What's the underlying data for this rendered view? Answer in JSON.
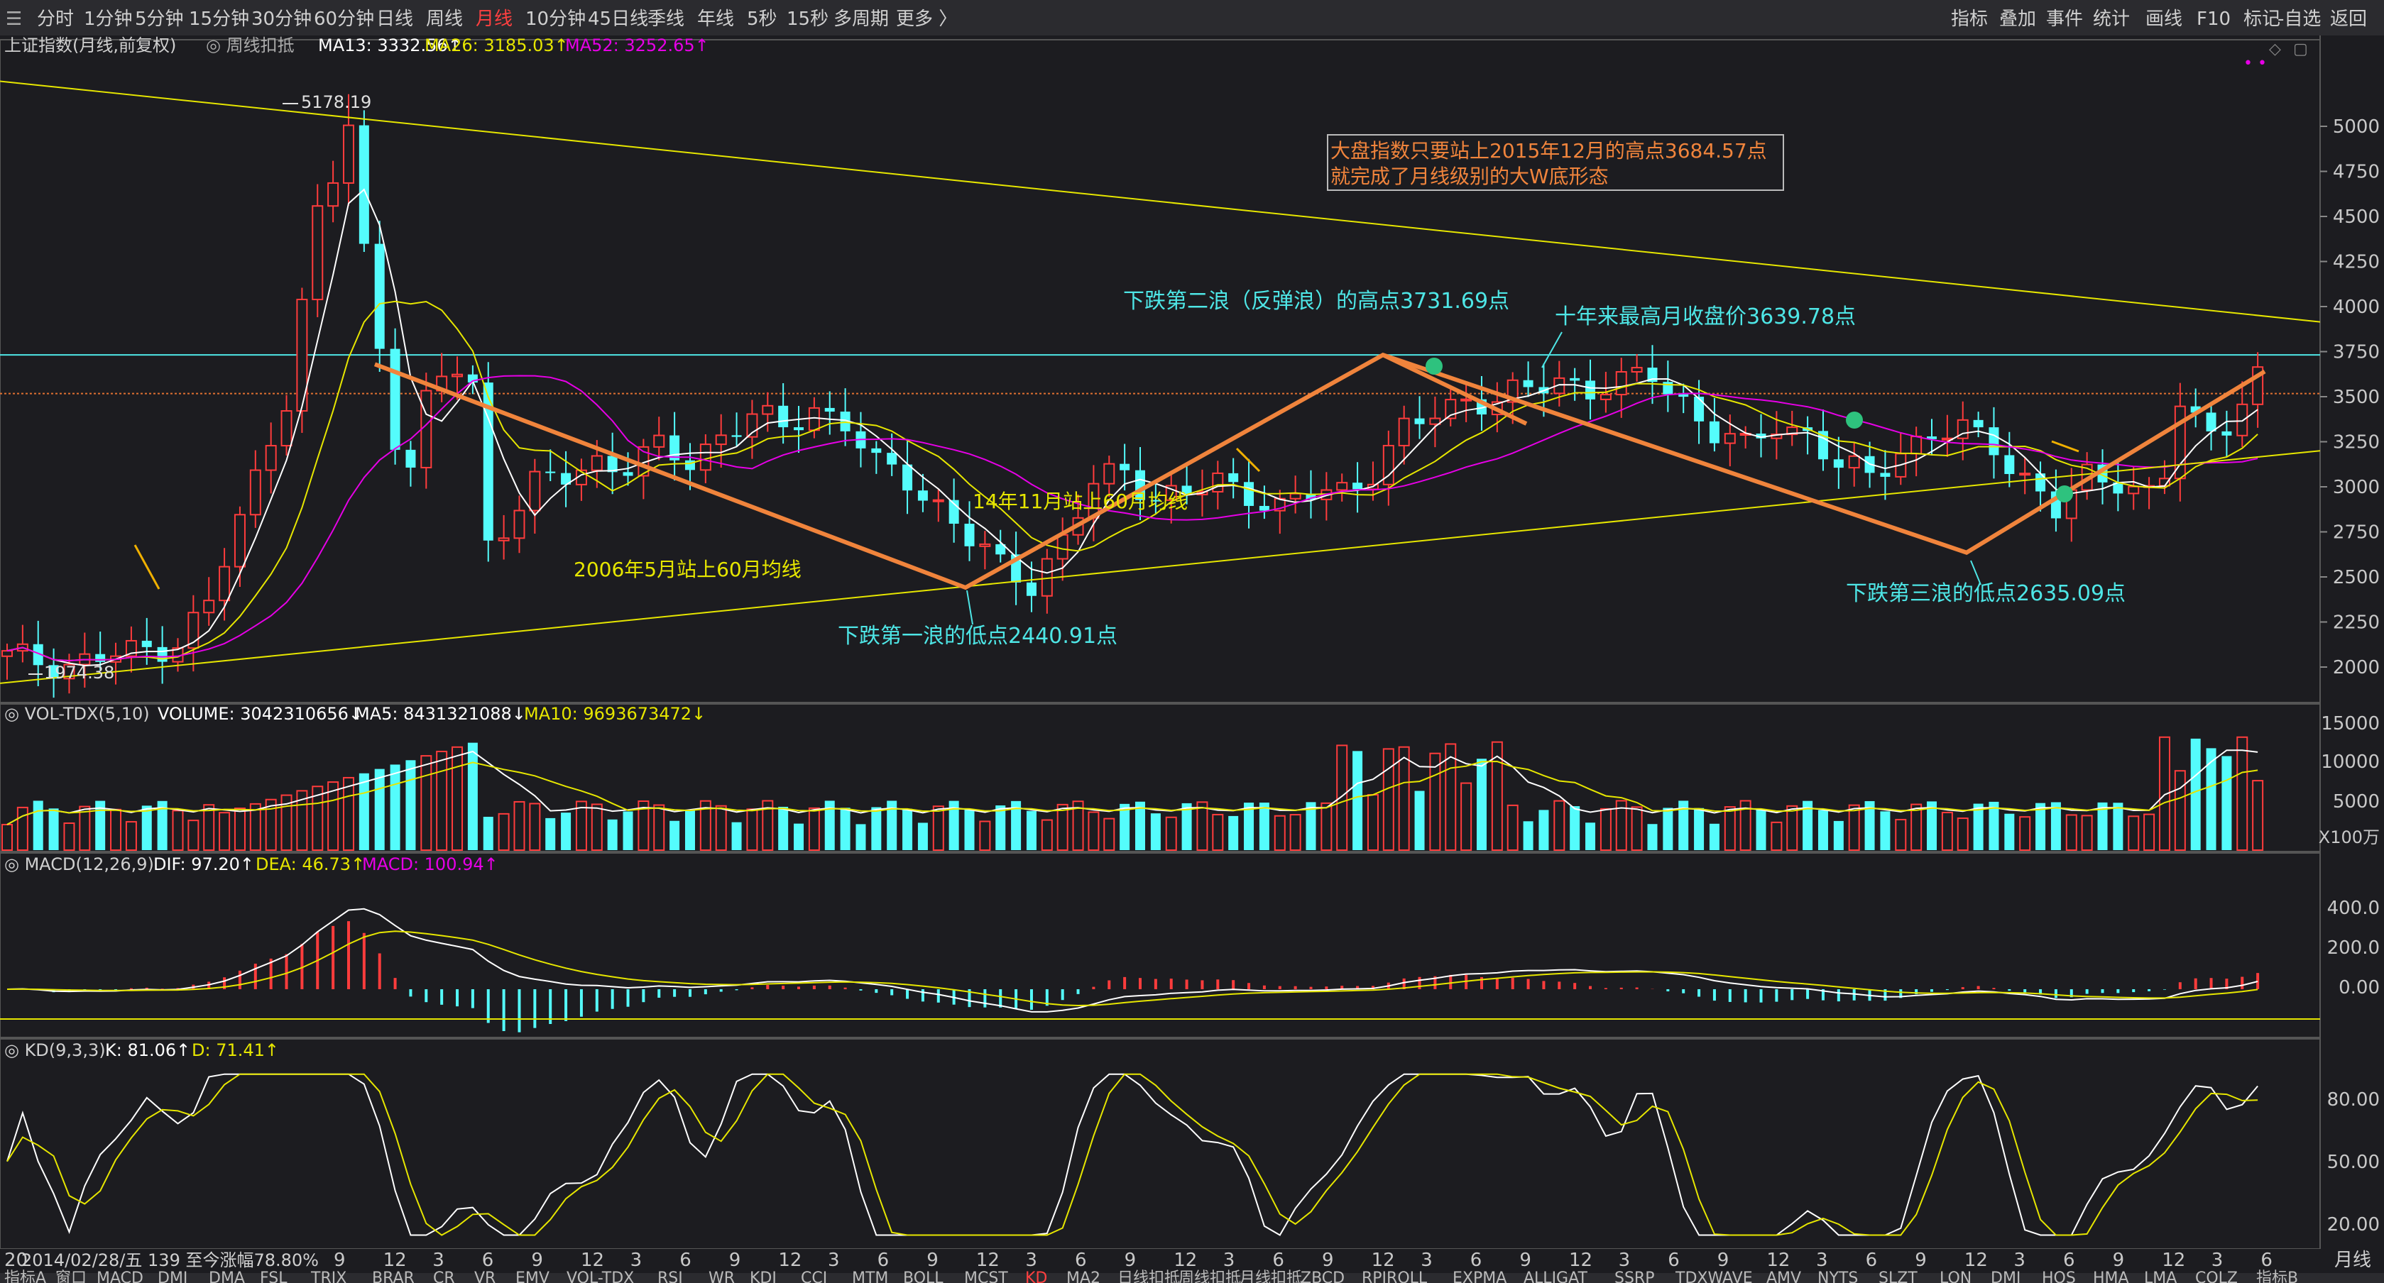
{
  "toolbar": {
    "periods": [
      "分时",
      "1分钟",
      "5分钟",
      "15分钟",
      "30分钟",
      "60分钟",
      "日线",
      "周线",
      "月线",
      "10分钟",
      "45日线",
      "季线",
      "年线",
      "5秒",
      "15秒",
      "多周期",
      "更多 〉"
    ],
    "active_period": "月线",
    "right": [
      "指标",
      "叠加",
      "事件",
      "统计",
      "画线",
      "F10",
      "标记",
      "-自选",
      "返回"
    ]
  },
  "main_header": {
    "name": "上证指数(月线,前复权)",
    "tag": "周线扣抵",
    "ma13": "MA13: 3332.56",
    "ma26": "MA26: 3185.03",
    "ma52": "MA52: 3252.65"
  },
  "vol_header": {
    "name": "VOL-TDX(5,10)",
    "volume": "VOLUME: 3042310656",
    "ma5": "MA5: 8431321088",
    "ma10": "MA10: 9693673472"
  },
  "macd_header": {
    "name": "MACD(12,26,9)",
    "dif": "DIF: 97.20",
    "dea": "DEA: 46.73",
    "macd": "MACD: 100.94"
  },
  "kd_header": {
    "name": "KD(9,3,3)",
    "k": "K: 81.06",
    "d": "D: 71.41"
  },
  "axes": {
    "main": [
      "5000",
      "4750",
      "4500",
      "4250",
      "4000",
      "3750",
      "3500",
      "3250",
      "3000",
      "2750",
      "2500",
      "2250",
      "2000"
    ],
    "vol": [
      "15000",
      "10000",
      "5000"
    ],
    "vol_unit": "X100万",
    "macd": [
      "400.0",
      "200.0",
      "0.00"
    ],
    "kd": [
      "80.00",
      "50.00",
      "20.00"
    ],
    "x_ticks": [
      "9",
      "12",
      "3",
      "6",
      "9",
      "12",
      "3",
      "6",
      "9",
      "12",
      "3",
      "6",
      "9",
      "12",
      "3",
      "6",
      "9",
      "12",
      "3",
      "6",
      "9",
      "12",
      "3",
      "6",
      "9",
      "12",
      "3",
      "6",
      "9",
      "12",
      "3",
      "6",
      "9",
      "12",
      "3",
      "6",
      "9",
      "12",
      "3",
      "6"
    ],
    "x_first": "20",
    "corner": "月线"
  },
  "annotations": {
    "box_line1": "大盘指数只要站上2015年12月的高点3684.57点",
    "box_line2": "就完成了月线级别的大W底形态",
    "second_wave": "下跌第二浪（反弹浪）的高点3731.69点",
    "ten_year": "十年来最高月收盘价3639.78点",
    "low1": "下跌第一浪的低点2440.91点",
    "low3": "下跌第三浪的低点2635.09点",
    "ma60_2006": "2006年5月站上60月均线",
    "ma60_2014": "14年11月站上60月均线",
    "peak": "5178.19",
    "bottom": "1974.38"
  },
  "status": "2014/02/28/五 139 至今涨幅78.80%",
  "indicator_tabs": [
    "指标A",
    "窗口",
    "MACD",
    "DMI",
    "DMA",
    "FSL",
    "TRIX",
    "BRAR",
    "CR",
    "VR",
    "EMV",
    "VOL-TDX",
    "RSI",
    "WR",
    "KDJ",
    "CCI",
    "MTM",
    "BOLL",
    "MCST",
    "KD",
    "MA2",
    "日线扣抵",
    "周线扣抵",
    "月线扣抵",
    "ZBCD",
    "RPIROLL",
    "EXPMA",
    "ALLIGAT",
    "SSRP",
    "TDXWAVE",
    "AMV",
    "NYTS",
    "SLZT",
    "LON",
    "DMI",
    "HOS",
    "HMA",
    "LMA",
    "COLZ",
    "指标B"
  ],
  "colors": {
    "up": "#ff3c3c",
    "down": "#54fcfc",
    "ma13": "#ffffff",
    "ma26": "#e6e600",
    "ma52": "#e600e6",
    "trend": "#f0843c",
    "cyan": "#4ee6e6",
    "yellow": "#e6e600",
    "red": "#ff4040"
  },
  "chart_data": {
    "type": "candlestick",
    "title": "上证指数(月线,前复权)",
    "ylim": [
      1900,
      5300
    ],
    "candles": [],
    "volume": [],
    "macd": [],
    "kd": [],
    "levels": {
      "horizontal_cyan": 3731.69,
      "horizontal_orange": 3517
    }
  }
}
